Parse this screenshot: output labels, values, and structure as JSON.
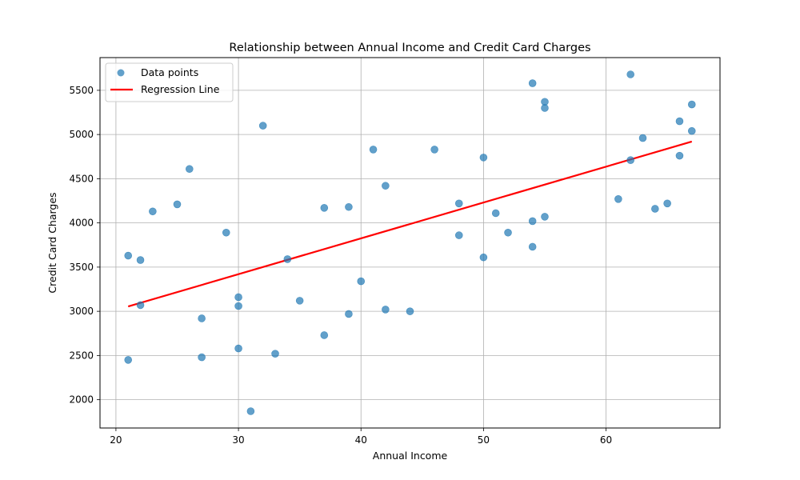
{
  "chart_data": {
    "type": "scatter",
    "title": "Relationship between Annual Income and Credit Card Charges",
    "xlabel": "Annual Income",
    "ylabel": "Credit Card Charges",
    "xlim": [
      18.7,
      69.3
    ],
    "ylim": [
      1680,
      5870
    ],
    "xticks": [
      20,
      30,
      40,
      50,
      60
    ],
    "yticks": [
      2000,
      2500,
      3000,
      3500,
      4000,
      4500,
      5000,
      5500
    ],
    "grid": true,
    "legend_position": "upper-left",
    "series": [
      {
        "name": "Data points",
        "kind": "scatter",
        "color": "#1f77b4",
        "points": [
          [
            21,
            3630
          ],
          [
            21,
            2450
          ],
          [
            22,
            3580
          ],
          [
            22,
            3070
          ],
          [
            23,
            4130
          ],
          [
            25,
            4210
          ],
          [
            26,
            4610
          ],
          [
            27,
            2920
          ],
          [
            27,
            2480
          ],
          [
            29,
            3890
          ],
          [
            30,
            3160
          ],
          [
            30,
            3060
          ],
          [
            30,
            2580
          ],
          [
            31,
            1870
          ],
          [
            32,
            5100
          ],
          [
            33,
            2520
          ],
          [
            34,
            3590
          ],
          [
            35,
            3120
          ],
          [
            37,
            4170
          ],
          [
            37,
            2730
          ],
          [
            39,
            4180
          ],
          [
            39,
            2970
          ],
          [
            40,
            3340
          ],
          [
            41,
            4830
          ],
          [
            42,
            4420
          ],
          [
            42,
            3020
          ],
          [
            44,
            3000
          ],
          [
            46,
            4830
          ],
          [
            48,
            4220
          ],
          [
            48,
            3860
          ],
          [
            50,
            4740
          ],
          [
            50,
            3610
          ],
          [
            51,
            4110
          ],
          [
            52,
            3890
          ],
          [
            54,
            5580
          ],
          [
            54,
            4020
          ],
          [
            54,
            3730
          ],
          [
            55,
            5370
          ],
          [
            55,
            5300
          ],
          [
            55,
            4070
          ],
          [
            61,
            4270
          ],
          [
            62,
            5680
          ],
          [
            62,
            4710
          ],
          [
            63,
            4960
          ],
          [
            64,
            4160
          ],
          [
            65,
            4220
          ],
          [
            66,
            5150
          ],
          [
            66,
            4760
          ],
          [
            67,
            5340
          ],
          [
            67,
            5040
          ]
        ]
      },
      {
        "name": "Regression Line",
        "kind": "line",
        "color": "#ff0000",
        "points": [
          [
            21,
            3055
          ],
          [
            67,
            4920
          ]
        ]
      }
    ]
  }
}
